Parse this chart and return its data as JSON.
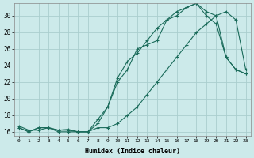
{
  "xlabel": "Humidex (Indice chaleur)",
  "bg_color": "#cceaea",
  "grid_color": "#aacece",
  "line_color": "#1a6b5a",
  "xlim": [
    -0.5,
    23.5
  ],
  "ylim": [
    15.5,
    31.5
  ],
  "xticks": [
    0,
    1,
    2,
    3,
    4,
    5,
    6,
    7,
    8,
    9,
    10,
    11,
    12,
    13,
    14,
    15,
    16,
    17,
    18,
    19,
    20,
    21,
    22,
    23
  ],
  "yticks": [
    16,
    18,
    20,
    22,
    24,
    26,
    28,
    30
  ],
  "line1_x": [
    0,
    1,
    2,
    3,
    4,
    5,
    6,
    7,
    8,
    9,
    10,
    11,
    12,
    13,
    14,
    15,
    16,
    17,
    18,
    19,
    20,
    21,
    22,
    23
  ],
  "line1_y": [
    16.5,
    16.0,
    16.5,
    16.5,
    16.2,
    16.3,
    16.0,
    16.0,
    17.5,
    19.0,
    22.0,
    23.5,
    26.0,
    26.5,
    27.0,
    29.5,
    30.0,
    31.0,
    31.5,
    30.0,
    29.0,
    25.0,
    23.5,
    23.0
  ],
  "line2_x": [
    0,
    1,
    2,
    3,
    4,
    5,
    6,
    7,
    8,
    9,
    10,
    11,
    12,
    13,
    14,
    15,
    16,
    17,
    18,
    19,
    20,
    21,
    22,
    23
  ],
  "line2_y": [
    16.5,
    16.0,
    16.5,
    16.5,
    16.0,
    16.0,
    16.0,
    16.0,
    16.5,
    16.5,
    17.0,
    18.0,
    19.0,
    20.5,
    22.0,
    23.5,
    25.0,
    26.5,
    28.0,
    29.0,
    30.0,
    30.5,
    29.5,
    23.5
  ],
  "line3_x": [
    0,
    1,
    2,
    3,
    4,
    5,
    6,
    7,
    8,
    9,
    10,
    11,
    12,
    13,
    14,
    15,
    16,
    17,
    18,
    19,
    20,
    21,
    22,
    23
  ],
  "line3_y": [
    16.7,
    16.2,
    16.2,
    16.5,
    16.2,
    16.2,
    16.0,
    16.0,
    17.0,
    19.0,
    22.5,
    24.5,
    25.5,
    27.0,
    28.5,
    29.5,
    30.5,
    31.0,
    31.5,
    30.5,
    30.0,
    25.0,
    23.5,
    23.0
  ]
}
